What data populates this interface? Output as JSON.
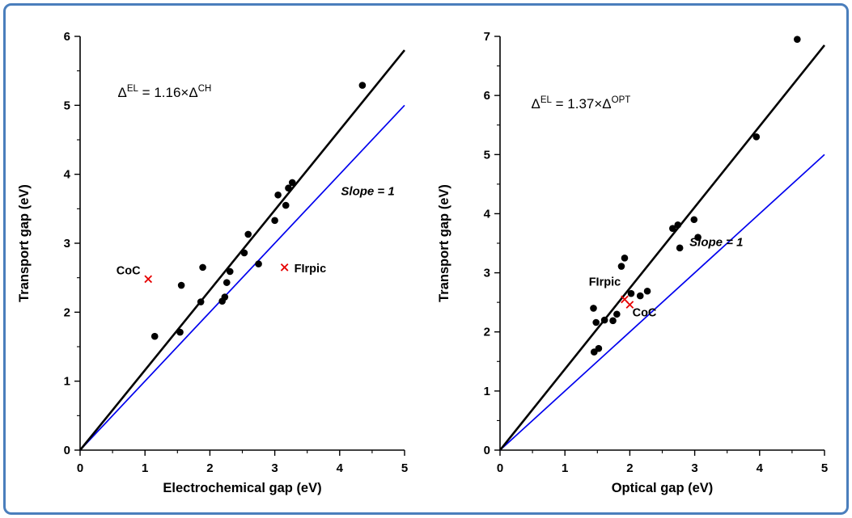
{
  "figure": {
    "border_color": "#4a7ebc",
    "background": "#ffffff"
  },
  "chart_data": [
    {
      "type": "scatter",
      "name": "transport-vs-electrochemical",
      "xlabel": "Electrochemical gap (eV)",
      "ylabel": "Transport gap (eV)",
      "xlim": [
        0,
        5
      ],
      "ylim": [
        0,
        6
      ],
      "xticks": [
        0,
        1,
        2,
        3,
        4,
        5
      ],
      "yticks": [
        0,
        1,
        2,
        3,
        4,
        5,
        6
      ],
      "minor_tick_step": 0.5,
      "grid": false,
      "points": [
        [
          1.15,
          1.65
        ],
        [
          1.54,
          1.71
        ],
        [
          1.56,
          2.39
        ],
        [
          1.86,
          2.15
        ],
        [
          1.89,
          2.65
        ],
        [
          2.19,
          2.16
        ],
        [
          2.23,
          2.22
        ],
        [
          2.26,
          2.43
        ],
        [
          2.31,
          2.59
        ],
        [
          2.53,
          2.86
        ],
        [
          2.59,
          3.13
        ],
        [
          2.75,
          2.7
        ],
        [
          3.0,
          3.33
        ],
        [
          3.05,
          3.7
        ],
        [
          3.17,
          3.55
        ],
        [
          3.21,
          3.8
        ],
        [
          3.27,
          3.88
        ],
        [
          4.35,
          5.29
        ]
      ],
      "fit_line": {
        "slope": 1.16,
        "color": "#000000",
        "width": 2.6
      },
      "reference_line": {
        "slope": 1,
        "color": "#0000ee",
        "width": 1.7,
        "label": "Slope = 1",
        "label_x": 4.02,
        "label_y": 3.7
      },
      "annotation": {
        "x": 0.58,
        "y": 5.12,
        "parts": [
          {
            "text": "Δ"
          },
          {
            "text": "EL",
            "sup": true
          },
          {
            "text": " = 1.16×Δ"
          },
          {
            "text": "CH",
            "sup": true
          }
        ]
      },
      "special_points": [
        {
          "label": "CoC",
          "x": 1.05,
          "y": 2.48,
          "label_x": 0.93,
          "label_y": 2.55,
          "anchor": "end"
        },
        {
          "label": "FIrpic",
          "x": 3.15,
          "y": 2.65,
          "label_x": 3.3,
          "label_y": 2.58,
          "anchor": "start"
        }
      ],
      "colors": {
        "point": "#000000",
        "special": "#e60000"
      }
    },
    {
      "type": "scatter",
      "name": "transport-vs-optical",
      "xlabel": "Optical gap (eV)",
      "ylabel": "Transport gap (eV)",
      "xlim": [
        0,
        5
      ],
      "ylim": [
        0,
        7
      ],
      "xticks": [
        0,
        1,
        2,
        3,
        4,
        5
      ],
      "yticks": [
        0,
        1,
        2,
        3,
        4,
        5,
        6,
        7
      ],
      "minor_tick_step": 0.5,
      "grid": false,
      "points": [
        [
          1.45,
          1.66
        ],
        [
          1.52,
          1.72
        ],
        [
          1.44,
          2.4
        ],
        [
          1.48,
          2.16
        ],
        [
          1.61,
          2.2
        ],
        [
          1.74,
          2.19
        ],
        [
          1.8,
          2.3
        ],
        [
          1.87,
          3.11
        ],
        [
          1.92,
          3.25
        ],
        [
          2.02,
          2.65
        ],
        [
          2.16,
          2.61
        ],
        [
          2.27,
          2.69
        ],
        [
          2.66,
          3.75
        ],
        [
          2.74,
          3.81
        ],
        [
          2.77,
          3.42
        ],
        [
          2.99,
          3.9
        ],
        [
          3.05,
          3.6
        ],
        [
          3.95,
          5.3
        ],
        [
          4.58,
          6.95
        ]
      ],
      "fit_line": {
        "slope": 1.37,
        "color": "#000000",
        "width": 2.6
      },
      "reference_line": {
        "slope": 1,
        "color": "#0000ee",
        "width": 1.7,
        "label": "Slope = 1",
        "label_x": 2.92,
        "label_y": 3.45
      },
      "annotation": {
        "x": 0.48,
        "y": 5.78,
        "parts": [
          {
            "text": "Δ"
          },
          {
            "text": "EL",
            "sup": true
          },
          {
            "text": " = 1.37×Δ"
          },
          {
            "text": "OPT",
            "sup": true
          }
        ]
      },
      "special_points": [
        {
          "label": "FIrpic",
          "x": 1.92,
          "y": 2.55,
          "label_x": 1.86,
          "label_y": 2.78,
          "anchor": "end"
        },
        {
          "label": "CoC",
          "x": 2.0,
          "y": 2.46,
          "label_x": 2.04,
          "label_y": 2.26,
          "anchor": "start"
        }
      ],
      "colors": {
        "point": "#000000",
        "special": "#e60000"
      }
    }
  ]
}
